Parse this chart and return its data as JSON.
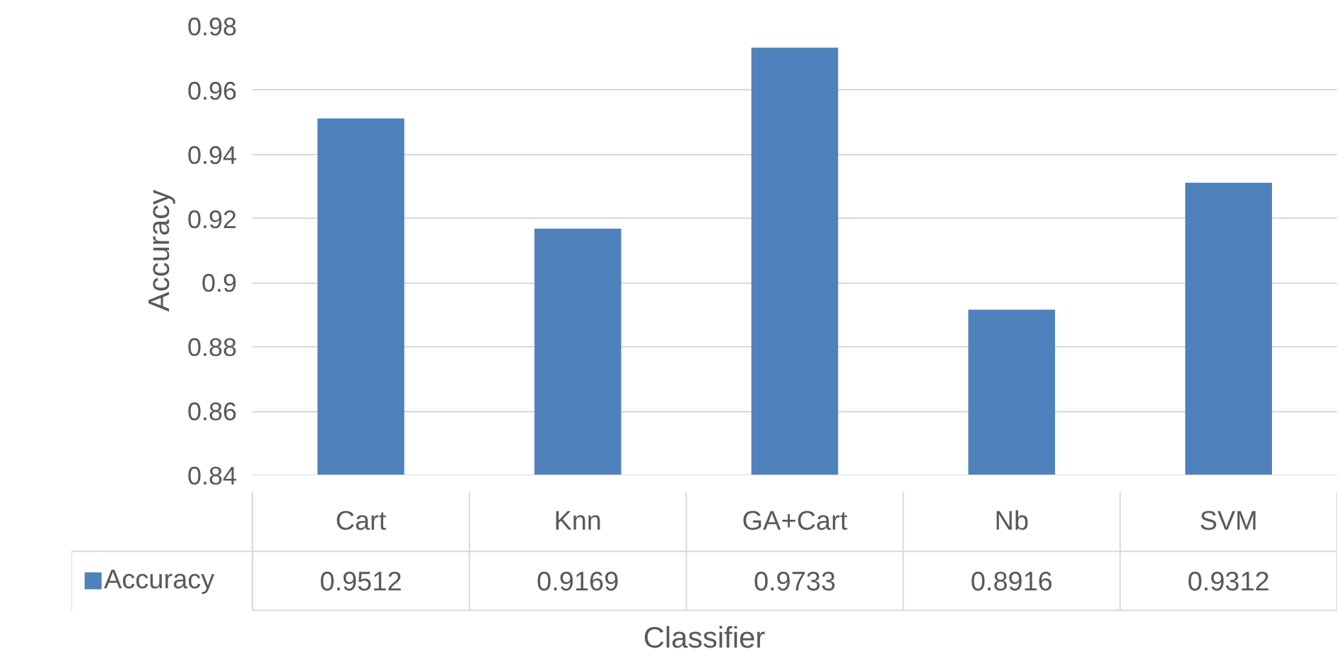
{
  "chart_data": {
    "type": "bar",
    "categories": [
      "Cart",
      "Knn",
      "GA+Cart",
      "Nb",
      "SVM"
    ],
    "series": [
      {
        "name": "Accuracy",
        "color": "#4f81bd",
        "values": [
          0.9512,
          0.9169,
          0.9733,
          0.8916,
          0.9312
        ]
      }
    ],
    "ylim": [
      0.84,
      0.98
    ],
    "yticks": [
      0.84,
      0.86,
      0.88,
      0.9,
      0.92,
      0.94,
      0.96,
      0.98
    ],
    "xlabel": "Classifier",
    "ylabel": "Accuracy",
    "grid": "y",
    "data_labels": true,
    "legend": "bottom"
  }
}
